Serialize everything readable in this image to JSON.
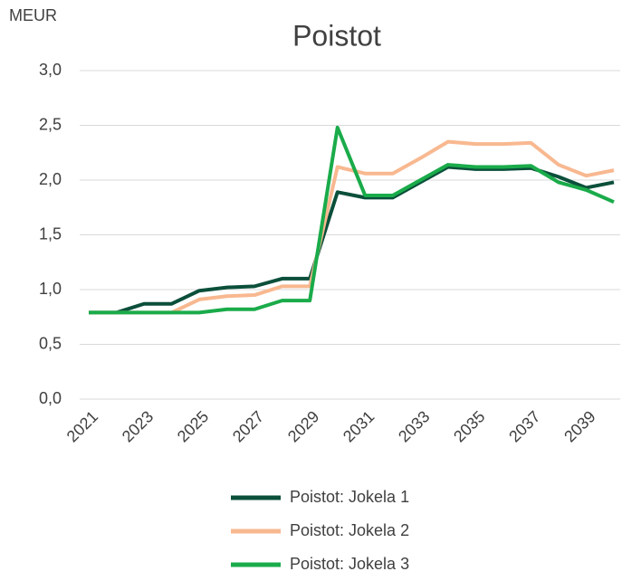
{
  "chart_data": {
    "type": "line",
    "title": "Poistot",
    "y_label": "MEUR",
    "categories": [
      "2021",
      null,
      "2023",
      null,
      "2025",
      null,
      "2027",
      null,
      "2029",
      null,
      "2031",
      null,
      "2033",
      null,
      "2035",
      null,
      "2037",
      null,
      "2039",
      null
    ],
    "series": [
      {
        "name": "Poistot: Jokela 1",
        "color": "#0b4f3a",
        "values": [
          0.79,
          0.79,
          0.87,
          0.87,
          0.99,
          1.02,
          1.03,
          1.1,
          1.1,
          1.89,
          1.84,
          1.84,
          1.98,
          2.12,
          2.1,
          2.1,
          2.11,
          2.03,
          1.93,
          1.98
        ]
      },
      {
        "name": "Poistot: Jokela 2",
        "color": "#f8b890",
        "values": [
          0.79,
          0.79,
          0.79,
          0.79,
          0.91,
          0.94,
          0.95,
          1.03,
          1.03,
          2.12,
          2.06,
          2.06,
          2.2,
          2.35,
          2.33,
          2.33,
          2.34,
          2.14,
          2.04,
          2.09
        ]
      },
      {
        "name": "Poistot: Jokela 3",
        "color": "#1aab4a",
        "values": [
          0.79,
          0.79,
          0.79,
          0.79,
          0.79,
          0.82,
          0.82,
          0.9,
          0.9,
          2.48,
          1.86,
          1.86,
          2.0,
          2.14,
          2.12,
          2.12,
          2.13,
          1.98,
          1.91,
          1.8
        ]
      }
    ],
    "ylim": [
      0,
      3
    ],
    "yticks": [
      {
        "value": 0,
        "label": "0,0"
      },
      {
        "value": 0.5,
        "label": "0,5"
      },
      {
        "value": 1,
        "label": "1,0"
      },
      {
        "value": 1.5,
        "label": "1,5"
      },
      {
        "value": 2,
        "label": "2,0"
      },
      {
        "value": 2.5,
        "label": "2,5"
      },
      {
        "value": 3,
        "label": "3,0"
      }
    ],
    "grid": true,
    "legend": "bottom"
  }
}
